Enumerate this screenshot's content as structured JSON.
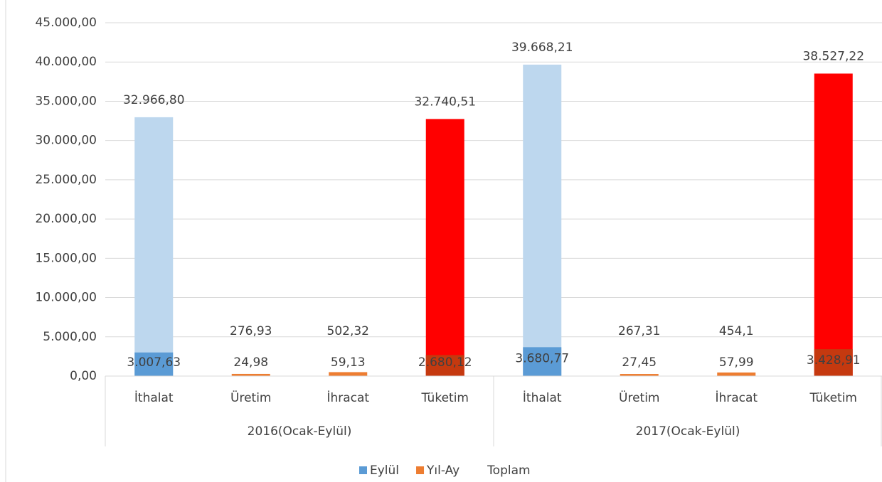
{
  "chart_data": {
    "type": "bar",
    "categories": [
      "İthalat",
      "Üretim",
      "İhracat",
      "Tüketim",
      "İthalat",
      "Üretim",
      "İhracat",
      "Tüketim"
    ],
    "groups": [
      {
        "label": "2016(Ocak-Eylül)",
        "span": 4
      },
      {
        "label": "2017(Ocak-Eylül)",
        "span": 4
      }
    ],
    "series": [
      {
        "name": "Eylül",
        "color": "#5b9bd5",
        "point_colors": [
          "#5b9bd5",
          "#ed7d31",
          "#ed7d31",
          "#c5390f",
          "#5b9bd5",
          "#ed7d31",
          "#ed7d31",
          "#c5390f"
        ],
        "values": [
          3007.63,
          24.98,
          59.13,
          2680.12,
          3680.77,
          27.45,
          57.99,
          3428.91
        ],
        "value_labels": [
          "3.007,63",
          "24,98",
          "59,13",
          "2.680,12",
          "3.680,77",
          "27,45",
          "57,99",
          "3.428,91"
        ]
      },
      {
        "name": "Yıl-Ay",
        "color": "#ed7d31",
        "point_colors": [
          "#bdd7ee",
          "#ed7d31",
          "#ed7d31",
          "#ff0000",
          "#bdd7ee",
          "#ed7d31",
          "#ed7d31",
          "#ff0000"
        ],
        "values": [
          32966.8,
          276.93,
          502.32,
          32740.51,
          39668.21,
          267.31,
          454.1,
          38527.22
        ],
        "value_labels": [
          "32.966,80",
          "276,93",
          "502,32",
          "32.740,51",
          "39.668,21",
          "267,31",
          "454,1",
          "38.527,22"
        ]
      }
    ],
    "extra_legend": "Toplam",
    "ylim": [
      0,
      45000
    ],
    "yticks": [
      {
        "value": 0,
        "label": "0,00"
      },
      {
        "value": 5000,
        "label": "5.000,00"
      },
      {
        "value": 10000,
        "label": "10.000,00"
      },
      {
        "value": 15000,
        "label": "15.000,00"
      },
      {
        "value": 20000,
        "label": "20.000,00"
      },
      {
        "value": 25000,
        "label": "25.000,00"
      },
      {
        "value": 30000,
        "label": "30.000,00"
      },
      {
        "value": 35000,
        "label": "35.000,00"
      },
      {
        "value": 40000,
        "label": "40.000,00"
      },
      {
        "value": 45000,
        "label": "45.000,00"
      }
    ],
    "grid": true
  }
}
